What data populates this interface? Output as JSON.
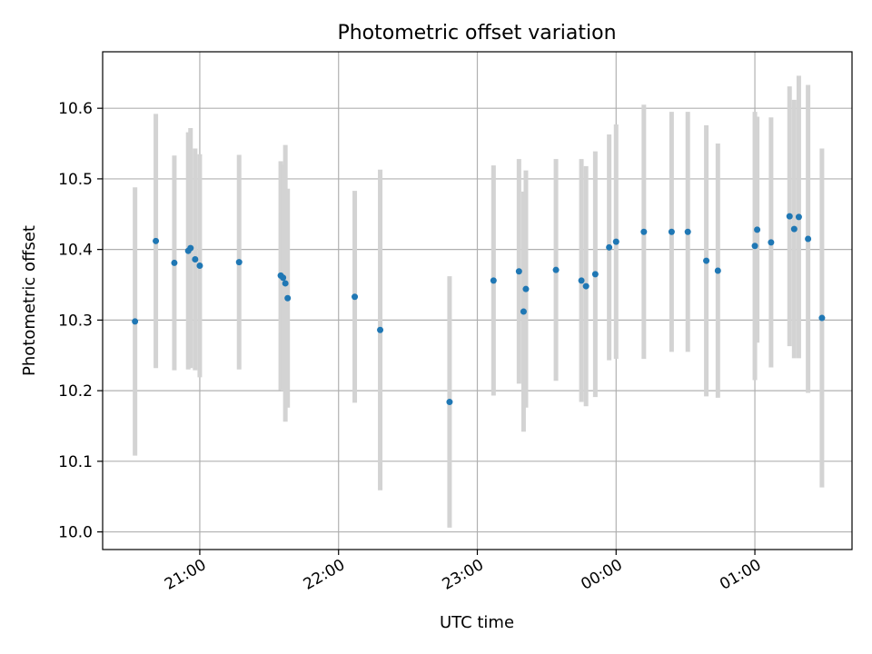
{
  "chart_data": {
    "type": "scatter",
    "title": "Photometric offset variation",
    "xlabel": "UTC time",
    "ylabel": "Photometric offset",
    "grid": true,
    "legend": "none",
    "xlim": [
      "2023-05-01T20:18",
      "2023-05-02T01:42"
    ],
    "ylim": [
      9.975,
      10.68
    ],
    "xticks": [
      {
        "value": "2023-05-01T21:00",
        "label": "21:00"
      },
      {
        "value": "2023-05-01T22:00",
        "label": "22:00"
      },
      {
        "value": "2023-05-01T23:00",
        "label": "23:00"
      },
      {
        "value": "2023-05-02T00:00",
        "label": "00:00"
      },
      {
        "value": "2023-05-02T01:00",
        "label": "01:00"
      }
    ],
    "yticks": [
      {
        "value": 10.0,
        "label": "10.0"
      },
      {
        "value": 10.1,
        "label": "10.1"
      },
      {
        "value": 10.2,
        "label": "10.2"
      },
      {
        "value": 10.3,
        "label": "10.3"
      },
      {
        "value": 10.4,
        "label": "10.4"
      },
      {
        "value": 10.5,
        "label": "10.5"
      },
      {
        "value": 10.6,
        "label": "10.6"
      }
    ],
    "colors": {
      "marker": "#1f77b4",
      "errorbar": "#d3d3d3",
      "grid": "#b0b0b0"
    },
    "points": [
      {
        "x": "2023-05-01T20:32",
        "y": 10.298,
        "yerr": 0.19
      },
      {
        "x": "2023-05-01T20:41",
        "y": 10.412,
        "yerr": 0.18
      },
      {
        "x": "2023-05-01T20:49",
        "y": 10.381,
        "yerr": 0.152
      },
      {
        "x": "2023-05-01T20:55",
        "y": 10.398,
        "yerr": 0.168
      },
      {
        "x": "2023-05-01T20:56",
        "y": 10.402,
        "yerr": 0.17
      },
      {
        "x": "2023-05-01T20:58",
        "y": 10.386,
        "yerr": 0.157
      },
      {
        "x": "2023-05-01T21:00",
        "y": 10.377,
        "yerr": 0.158
      },
      {
        "x": "2023-05-01T21:17",
        "y": 10.382,
        "yerr": 0.152
      },
      {
        "x": "2023-05-01T21:35",
        "y": 10.363,
        "yerr": 0.162
      },
      {
        "x": "2023-05-01T21:36",
        "y": 10.36,
        "yerr": 0.16
      },
      {
        "x": "2023-05-01T21:37",
        "y": 10.352,
        "yerr": 0.196
      },
      {
        "x": "2023-05-01T21:38",
        "y": 10.331,
        "yerr": 0.155
      },
      {
        "x": "2023-05-01T22:07",
        "y": 10.333,
        "yerr": 0.15
      },
      {
        "x": "2023-05-01T22:18",
        "y": 10.286,
        "yerr": 0.227
      },
      {
        "x": "2023-05-01T22:48",
        "y": 10.184,
        "yerr": 0.178
      },
      {
        "x": "2023-05-01T23:07",
        "y": 10.356,
        "yerr": 0.163
      },
      {
        "x": "2023-05-01T23:18",
        "y": 10.369,
        "yerr": 0.159
      },
      {
        "x": "2023-05-01T23:20",
        "y": 10.312,
        "yerr": 0.17
      },
      {
        "x": "2023-05-01T23:21",
        "y": 10.344,
        "yerr": 0.168
      },
      {
        "x": "2023-05-01T23:34",
        "y": 10.371,
        "yerr": 0.157
      },
      {
        "x": "2023-05-01T23:45",
        "y": 10.356,
        "yerr": 0.172
      },
      {
        "x": "2023-05-01T23:47",
        "y": 10.348,
        "yerr": 0.17
      },
      {
        "x": "2023-05-01T23:51",
        "y": 10.365,
        "yerr": 0.174
      },
      {
        "x": "2023-05-01T23:57",
        "y": 10.403,
        "yerr": 0.16
      },
      {
        "x": "2023-05-02T00:00",
        "y": 10.411,
        "yerr": 0.166
      },
      {
        "x": "2023-05-02T00:12",
        "y": 10.425,
        "yerr": 0.18
      },
      {
        "x": "2023-05-02T00:24",
        "y": 10.425,
        "yerr": 0.17
      },
      {
        "x": "2023-05-02T00:31",
        "y": 10.425,
        "yerr": 0.17
      },
      {
        "x": "2023-05-02T00:39",
        "y": 10.384,
        "yerr": 0.192
      },
      {
        "x": "2023-05-02T00:44",
        "y": 10.37,
        "yerr": 0.18
      },
      {
        "x": "2023-05-02T01:00",
        "y": 10.405,
        "yerr": 0.19
      },
      {
        "x": "2023-05-02T01:01",
        "y": 10.428,
        "yerr": 0.16
      },
      {
        "x": "2023-05-02T01:07",
        "y": 10.41,
        "yerr": 0.177
      },
      {
        "x": "2023-05-02T01:15",
        "y": 10.447,
        "yerr": 0.184
      },
      {
        "x": "2023-05-02T01:17",
        "y": 10.429,
        "yerr": 0.183
      },
      {
        "x": "2023-05-02T01:19",
        "y": 10.446,
        "yerr": 0.2
      },
      {
        "x": "2023-05-02T01:23",
        "y": 10.415,
        "yerr": 0.218
      },
      {
        "x": "2023-05-02T01:29",
        "y": 10.303,
        "yerr": 0.24
      }
    ]
  }
}
